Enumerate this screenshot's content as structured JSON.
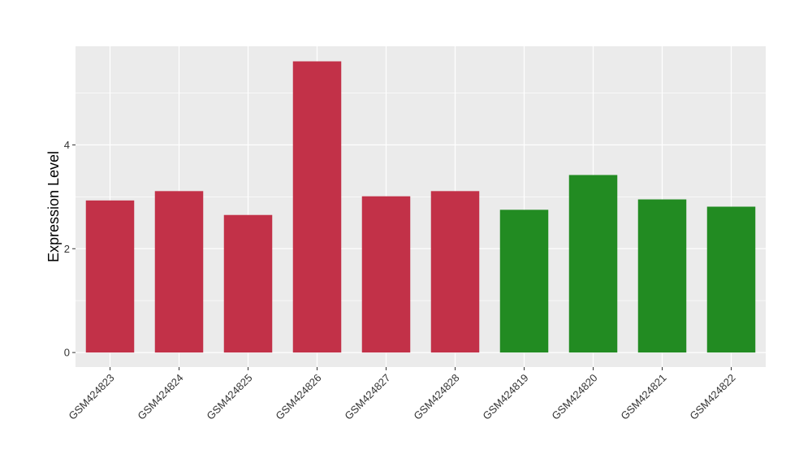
{
  "chart_data": {
    "type": "bar",
    "title": "",
    "xlabel": "",
    "ylabel": "Expression Level",
    "categories": [
      "GSM424823",
      "GSM424824",
      "GSM424825",
      "GSM424826",
      "GSM424827",
      "GSM424828",
      "GSM424819",
      "GSM424820",
      "GSM424821",
      "GSM424822"
    ],
    "values": [
      2.93,
      3.11,
      2.65,
      5.61,
      3.01,
      3.11,
      2.75,
      3.42,
      2.95,
      2.81
    ],
    "bar_colors": [
      "#C23148",
      "#C23148",
      "#C23148",
      "#C23148",
      "#C23148",
      "#C23148",
      "#228B22",
      "#228B22",
      "#228B22",
      "#228B22"
    ],
    "ylim": [
      -0.28,
      5.9
    ],
    "yticks": [
      0,
      2,
      4
    ],
    "grid": true,
    "legend": "none",
    "panel_background": "#EBEBEB",
    "grid_color": "#FFFFFF"
  }
}
